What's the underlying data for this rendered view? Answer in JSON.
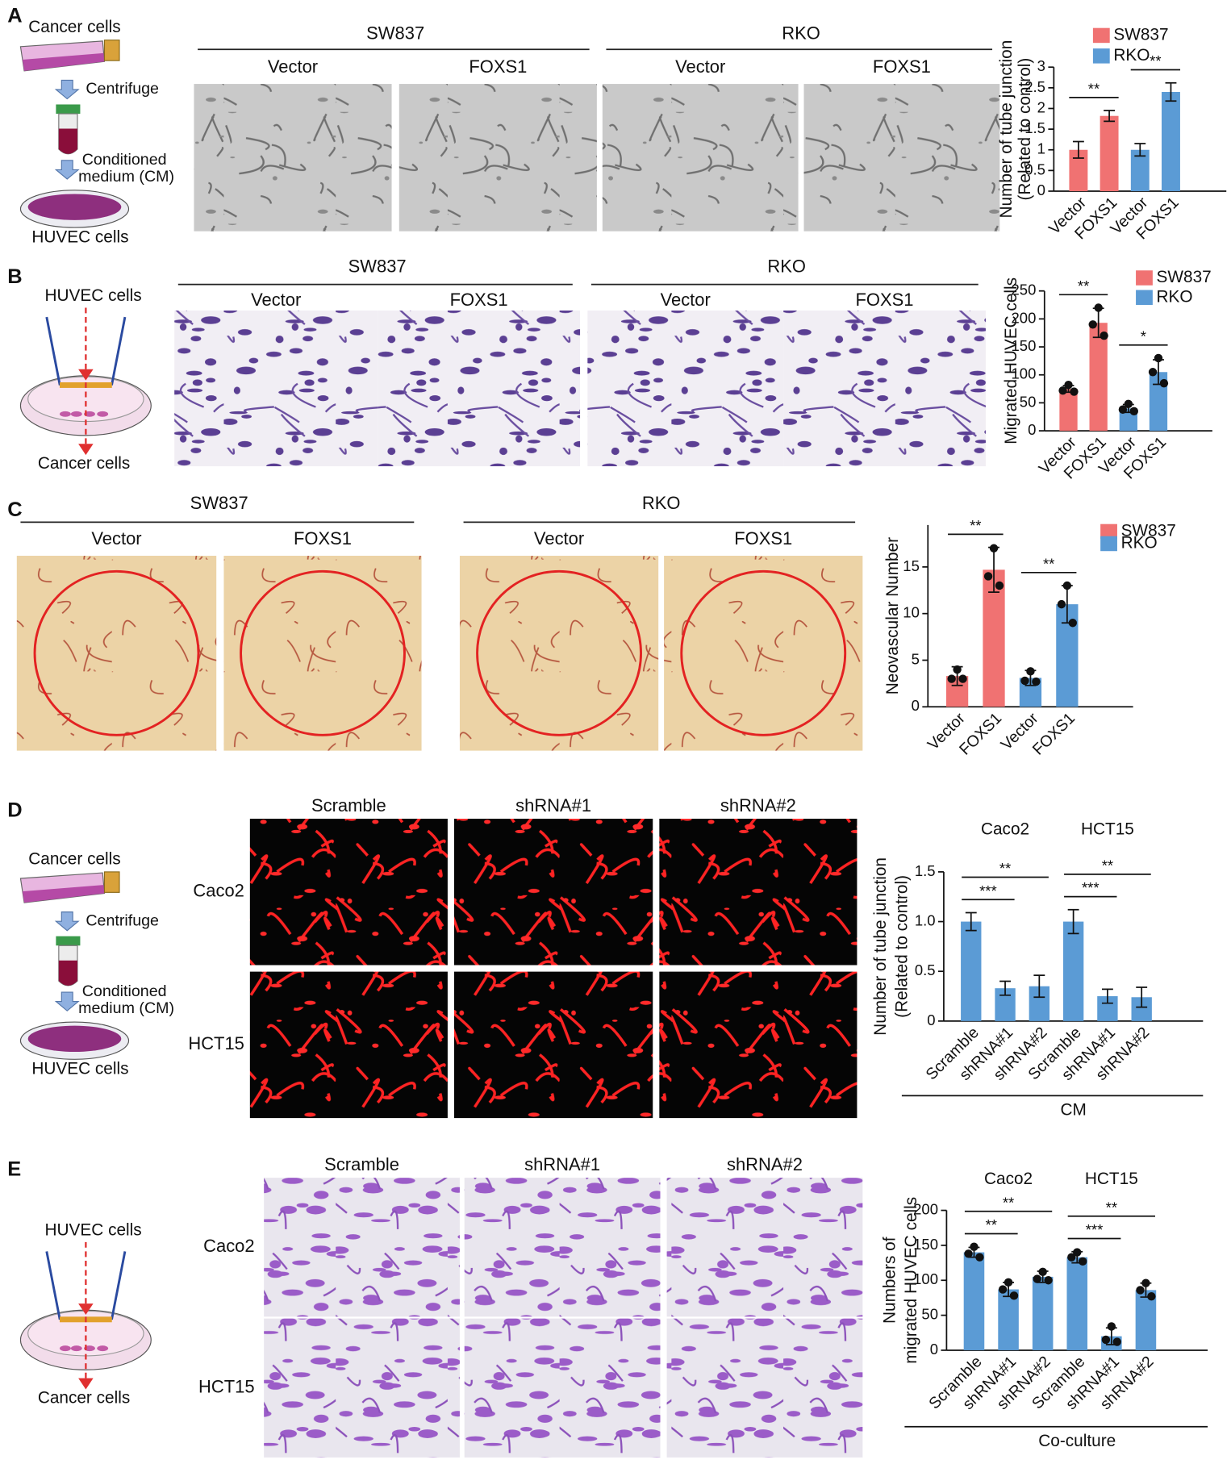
{
  "panels": [
    {
      "letter": "A",
      "diagram": {
        "top": "Cancer cells",
        "step1": "Centrifuge",
        "step2": [
          "Conditioned",
          "medium (CM)"
        ],
        "bottom": "HUVEC  cells"
      },
      "images": {
        "groups": [
          "SW837",
          "RKO"
        ],
        "columns": [
          "Vector",
          "FOXS1",
          "Vector",
          "FOXS1"
        ]
      },
      "chart": {
        "type": "bar",
        "ylabel": [
          "Number of tube junction",
          "(Related to control)"
        ],
        "ylim": [
          0,
          3
        ],
        "yticks": [
          0,
          0.5,
          1,
          1.5,
          2,
          2.5,
          3
        ],
        "legend": true,
        "groups": [
          {
            "name": "SW837",
            "color": "#f07272",
            "categories": [
              "Vector",
              "FOXS1"
            ],
            "values": [
              1.0,
              1.82
            ],
            "errors": [
              0.2,
              0.13
            ],
            "significance": [
              "**"
            ]
          },
          {
            "name": "RKO",
            "color": "#5b9bd5",
            "categories": [
              "Vector",
              "FOXS1"
            ],
            "values": [
              1.0,
              2.4
            ],
            "errors": [
              0.15,
              0.22
            ],
            "significance": [
              "**"
            ]
          }
        ]
      }
    },
    {
      "letter": "B",
      "diagram": {
        "top": "HUVEC  cells",
        "bottom": "Cancer cells"
      },
      "images": {
        "groups": [
          "SW837",
          "RKO"
        ],
        "columns": [
          "Vector",
          "FOXS1",
          "Vector",
          "FOXS1"
        ]
      },
      "chart": {
        "type": "bar",
        "ylabel": [
          "Migrated HUVEC cells"
        ],
        "ylim": [
          0,
          250
        ],
        "yticks": [
          0,
          50,
          100,
          150,
          200,
          250
        ],
        "legend": true,
        "groups": [
          {
            "name": "SW837",
            "color": "#f07272",
            "categories": [
              "Vector",
              "FOXS1"
            ],
            "values": [
              75,
              193
            ],
            "errors": [
              6,
              26
            ],
            "points": [
              [
                82,
                72,
                70
              ],
              [
                220,
                190,
                170
              ]
            ],
            "significance": [
              "**"
            ]
          },
          {
            "name": "RKO",
            "color": "#5b9bd5",
            "categories": [
              "Vector",
              "FOXS1"
            ],
            "values": [
              40,
              105
            ],
            "errors": [
              7,
              22
            ],
            "points": [
              [
                48,
                38,
                35
              ],
              [
                130,
                105,
                85
              ]
            ],
            "significance": [
              "*"
            ]
          }
        ]
      }
    },
    {
      "letter": "C",
      "images": {
        "groups": [
          "SW837",
          "RKO"
        ],
        "columns": [
          "Vector",
          "FOXS1",
          "Vector",
          "FOXS1"
        ]
      },
      "chart": {
        "type": "bar",
        "ylabel": [
          "Neovascular Number"
        ],
        "ylim": [
          0,
          19.5
        ],
        "yticks": [
          0,
          5,
          10,
          15
        ],
        "legend": true,
        "groups": [
          {
            "name": "SW837",
            "color": "#f07272",
            "categories": [
              "Vector",
              "FOXS1"
            ],
            "values": [
              3.3,
              14.7
            ],
            "errors": [
              1.0,
              2.4
            ],
            "points": [
              [
                4,
                3,
                3
              ],
              [
                17,
                14,
                13
              ]
            ],
            "significance": [
              "**"
            ]
          },
          {
            "name": "RKO",
            "color": "#5b9bd5",
            "categories": [
              "Vector",
              "FOXS1"
            ],
            "values": [
              3.1,
              11
            ],
            "errors": [
              0.8,
              2
            ],
            "points": [
              [
                3.8,
                2.8,
                2.7
              ],
              [
                13,
                11,
                9
              ]
            ],
            "significance": [
              "**"
            ]
          }
        ]
      }
    },
    {
      "letter": "D",
      "diagram": {
        "top": "Cancer cells",
        "step1": "Centrifuge",
        "step2": [
          "Conditioned",
          "medium (CM)"
        ],
        "bottom": "HUVEC  cells"
      },
      "images": {
        "columns": [
          "Scramble",
          "shRNA#1",
          "shRNA#2"
        ],
        "rows": [
          "Caco2",
          "HCT15"
        ]
      },
      "chart": {
        "type": "bar",
        "ylabel": [
          "Number of tube junction",
          "(Related to control)"
        ],
        "xlabel": "CM",
        "ylim": [
          0,
          1.5
        ],
        "yticks": [
          0,
          0.5,
          {
            "value": 1,
            "label": "1.0"
          },
          1.5
        ],
        "legend": false,
        "groups": [
          {
            "name": "Caco2",
            "color": "#5b9bd5",
            "categories": [
              "Scramble",
              "shRNA#1",
              "shRNA#2"
            ],
            "values": [
              1.0,
              0.33,
              0.35
            ],
            "errors": [
              0.09,
              0.07,
              0.11
            ],
            "significance": [
              "***",
              "**"
            ]
          },
          {
            "name": "HCT15",
            "color": "#5b9bd5",
            "categories": [
              "Scramble",
              "shRNA#1",
              "shRNA#2"
            ],
            "values": [
              1.0,
              0.25,
              0.24
            ],
            "errors": [
              0.12,
              0.07,
              0.1
            ],
            "significance": [
              "***",
              "**"
            ]
          }
        ]
      }
    },
    {
      "letter": "E",
      "diagram": {
        "top": "HUVEC  cells",
        "bottom": "Cancer cells"
      },
      "images": {
        "columns": [
          "Scramble",
          "shRNA#1",
          "shRNA#2"
        ],
        "rows": [
          "Caco2",
          "HCT15"
        ]
      },
      "chart": {
        "type": "bar",
        "ylabel": [
          "Numbers of",
          "migrated HUVEC cells"
        ],
        "xlabel": "Co-culture",
        "ylim": [
          0,
          200
        ],
        "yticks": [
          0,
          50,
          100,
          150,
          200
        ],
        "legend": false,
        "groups": [
          {
            "name": "Caco2",
            "color": "#5b9bd5",
            "categories": [
              "Scramble",
              "shRNA#1",
              "shRNA#2"
            ],
            "values": [
              140,
              87,
              105
            ],
            "errors": [
              7,
              10,
              8
            ],
            "points": [
              [
                148,
                138,
                133
              ],
              [
                97,
                87,
                78
              ],
              [
                112,
                102,
                100
              ]
            ],
            "significance": [
              "**",
              "**"
            ]
          },
          {
            "name": "HCT15",
            "color": "#5b9bd5",
            "categories": [
              "Scramble",
              "shRNA#1",
              "shRNA#2"
            ],
            "values": [
              133,
              20,
              86
            ],
            "errors": [
              8,
              12,
              10
            ],
            "points": [
              [
                140,
                133,
                127
              ],
              [
                34,
                15,
                12
              ],
              [
                96,
                86,
                77
              ]
            ],
            "significance": [
              "***",
              "**"
            ]
          }
        ]
      }
    }
  ]
}
